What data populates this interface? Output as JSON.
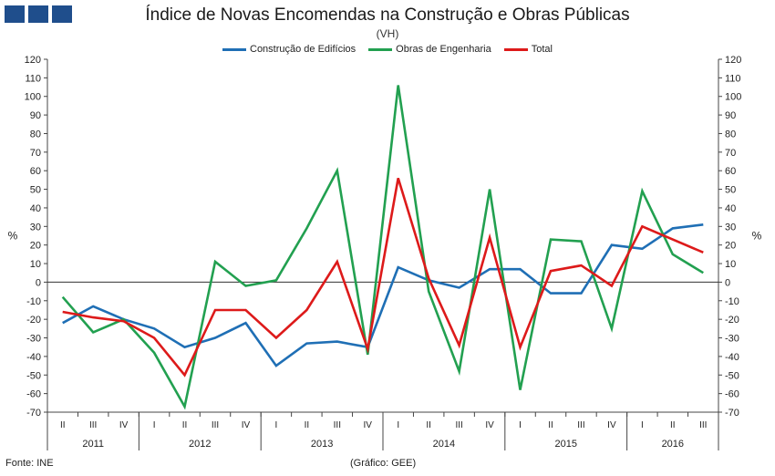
{
  "header": {
    "title": "Índice de Novas Encomendas na Construção e Obras Públicas",
    "subtitle": "(VH)"
  },
  "footer": {
    "source": "Fonte: INE",
    "credit": "(Gráfico: GEE)"
  },
  "colors": {
    "brand": "#1f4e8c",
    "axis": "#333333"
  },
  "chart_data": {
    "type": "line",
    "title": "Índice de Novas Encomendas na Construção e Obras Públicas",
    "subtitle": "(VH)",
    "ylabel_left": "%",
    "ylabel_right": "%",
    "ylim": [
      -70,
      120
    ],
    "yticks": [
      120,
      110,
      100,
      90,
      80,
      70,
      60,
      50,
      40,
      30,
      20,
      10,
      0,
      -10,
      -20,
      -30,
      -40,
      -50,
      -60,
      -70
    ],
    "legend_position": "top-center",
    "categories": [
      "II",
      "III",
      "IV",
      "I",
      "II",
      "III",
      "IV",
      "I",
      "II",
      "III",
      "IV",
      "I",
      "II",
      "III",
      "IV",
      "I",
      "II",
      "III",
      "IV",
      "I",
      "II",
      "III"
    ],
    "years": [
      {
        "label": "2011",
        "quarters": 3
      },
      {
        "label": "2012",
        "quarters": 4
      },
      {
        "label": "2013",
        "quarters": 4
      },
      {
        "label": "2014",
        "quarters": 4
      },
      {
        "label": "2015",
        "quarters": 4
      },
      {
        "label": "2016",
        "quarters": 3
      }
    ],
    "series": [
      {
        "name": "Construção de Edifícios",
        "color": "#1f6fb5",
        "values": [
          -22,
          -13,
          -20,
          -25,
          -35,
          -30,
          -22,
          -45,
          -33,
          -32,
          -35,
          8,
          1,
          -3,
          7,
          7,
          -6,
          -6,
          20,
          18,
          29,
          31
        ]
      },
      {
        "name": "Obras de Engenharia",
        "color": "#22a050",
        "values": [
          -8,
          -27,
          -20,
          -38,
          -67,
          11,
          -2,
          1,
          29,
          60,
          -39,
          106,
          -5,
          -48,
          50,
          -58,
          23,
          22,
          -25,
          49,
          15,
          5
        ]
      },
      {
        "name": "Total",
        "color": "#dd1a1a",
        "values": [
          -16,
          -19,
          -21,
          -30,
          -50,
          -15,
          -15,
          -30,
          -15,
          11,
          -36,
          56,
          2,
          -34,
          24,
          -35,
          6,
          9,
          -2,
          30,
          23,
          16
        ]
      }
    ]
  }
}
